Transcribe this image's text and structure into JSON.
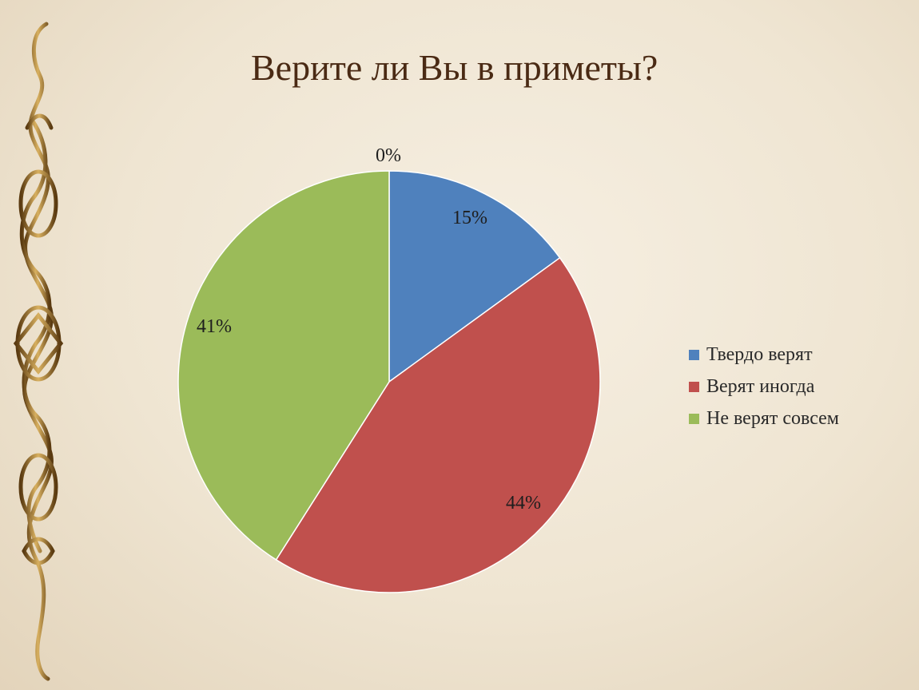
{
  "slide": {
    "title": "Верите ли Вы в приметы?"
  },
  "chart_data": {
    "type": "pie",
    "title": "Верите ли Вы в приметы?",
    "categories": [
      "Твердо верят",
      "Верят иногда",
      "Не верят совсем"
    ],
    "values": [
      15,
      44,
      41
    ],
    "extra_label": "0%",
    "data_labels": [
      "15%",
      "44%",
      "41%"
    ],
    "colors": [
      "#4f81bd",
      "#c0504d",
      "#9bbb59"
    ],
    "legend": "right"
  },
  "legend": {
    "items": [
      {
        "label": "Твердо верят",
        "color": "#4f81bd"
      },
      {
        "label": "Верят иногда",
        "color": "#c0504d"
      },
      {
        "label": "Не верят совсем",
        "color": "#9bbb59"
      }
    ]
  },
  "decoration": {
    "ornament": "celtic-knot-border-icon"
  }
}
